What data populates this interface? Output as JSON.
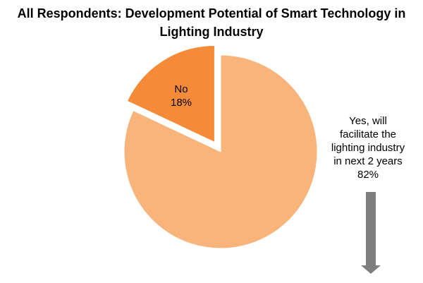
{
  "chart_data": {
    "type": "pie",
    "title": "All Respondents: Development Potential of Smart  Technology in Lighting Industry",
    "title_lines": [
      "All Respondents: Development Potential of Smart  Technology in",
      "Lighting Industry"
    ],
    "slices": [
      {
        "label_lines": [
          "Yes, will",
          "facilitate the",
          "lighting industry",
          "in next 2 years"
        ],
        "value": 82,
        "value_label": "82%",
        "color": "#f8b47b",
        "exploded": false
      },
      {
        "label_lines": [
          "No"
        ],
        "value": 18,
        "value_label": "18%",
        "color": "#f58b38",
        "exploded": true
      }
    ],
    "annotation_arrow_color": "#7f7f7f",
    "legend": "none"
  }
}
